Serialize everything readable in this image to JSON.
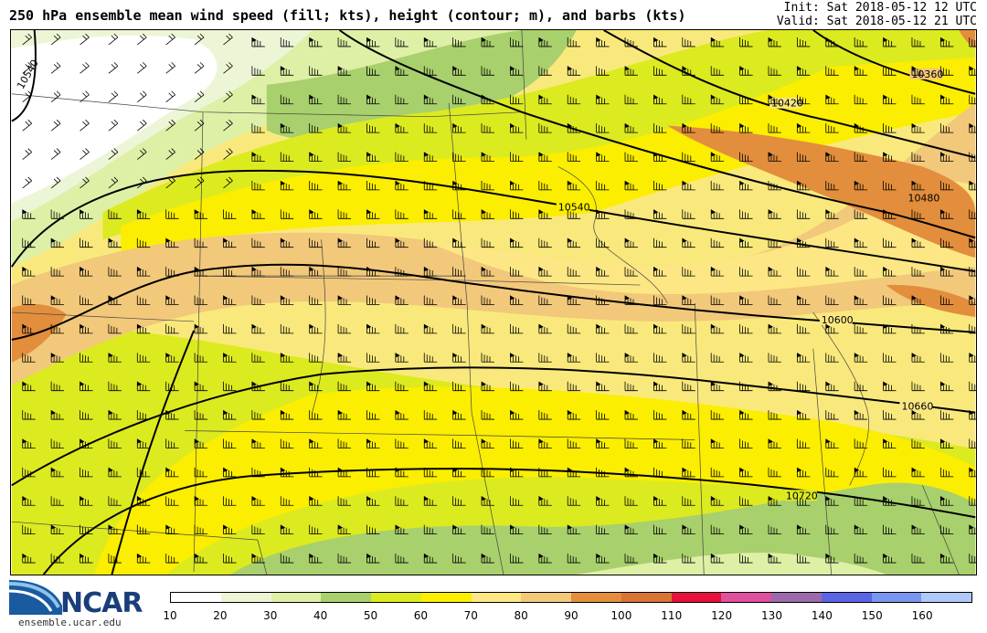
{
  "title": "250 hPa ensemble mean wind speed (fill; kts), height (contour; m), and barbs (kts)",
  "init": "Init: Sat 2018-05-12 12 UTC",
  "valid": "Valid: Sat 2018-05-12 21 UTC",
  "logo": {
    "text": "NCAR",
    "url_text": "ensemble.ucar.edu"
  },
  "colorbar": {
    "ticks": [
      "10",
      "20",
      "30",
      "40",
      "50",
      "60",
      "70",
      "80",
      "90",
      "100",
      "110",
      "120",
      "130",
      "140",
      "150",
      "160"
    ],
    "colors": [
      "#ffffff",
      "#ecf6d6",
      "#ddf0a6",
      "#a8d06c",
      "#dcea20",
      "#fbee00",
      "#fde784",
      "#f2c87a",
      "#e28e3c",
      "#d87434",
      "#e8103c",
      "#e0509c",
      "#9c6aac",
      "#5a64e4",
      "#7a96ee",
      "#b0c8fa"
    ]
  },
  "contours": [
    {
      "label": "10360"
    },
    {
      "label": "10420"
    },
    {
      "label": "10480"
    },
    {
      "label": "10540"
    },
    {
      "label": "10540"
    },
    {
      "label": "10600"
    },
    {
      "label": "10660"
    },
    {
      "label": "10720"
    }
  ]
}
